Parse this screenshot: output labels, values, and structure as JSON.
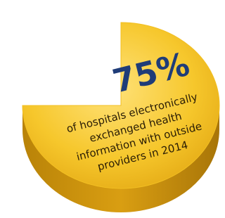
{
  "chart_data": {
    "type": "pie",
    "values": [
      75
    ],
    "value_labels": [
      "75%"
    ],
    "color": "#f2bf22",
    "annotation": [
      "of hospitals electronically",
      "exchanged health",
      "information with outside",
      "providers in 2014"
    ]
  }
}
